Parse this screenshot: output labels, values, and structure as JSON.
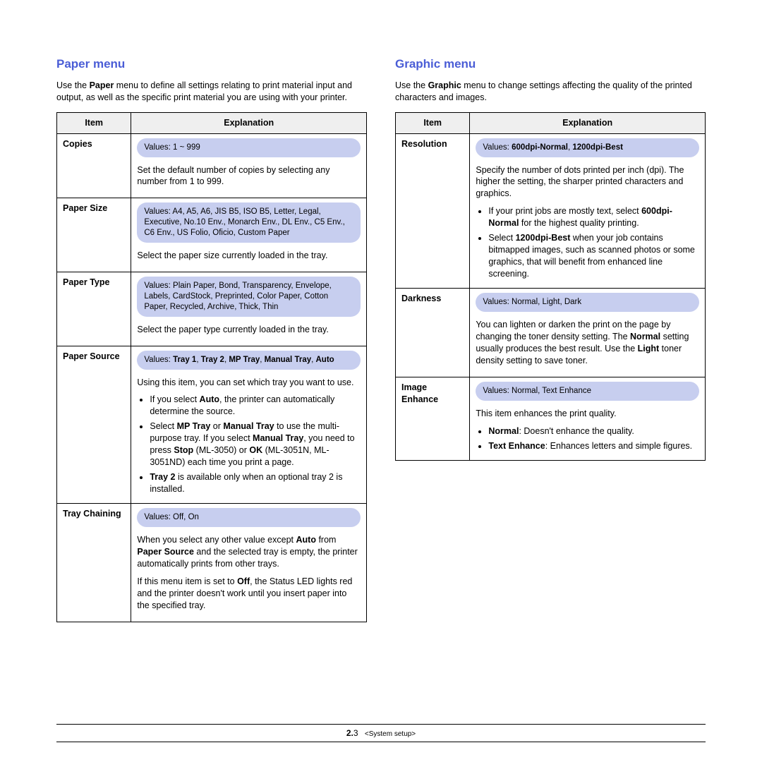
{
  "left": {
    "title": "Paper menu",
    "intro_pre": "Use the ",
    "intro_bold": "Paper",
    "intro_post": " menu to define all settings relating to print material input and output, as well as the specific print material you are using with your printer.",
    "th_item": "Item",
    "th_expl": "Explanation",
    "rows": {
      "copies": {
        "item": "Copies",
        "pill": "Values: 1 ~ 999",
        "desc": "Set the default number of copies by selecting any number from 1 to 999."
      },
      "psize": {
        "item": "Paper Size",
        "pill": "Values: A4, A5, A6, JIS B5, ISO B5, Letter, Legal, Executive, No.10 Env., Monarch Env., DL Env., C5 Env., C6 Env., US Folio, Oficio, Custom Paper",
        "desc": "Select the paper size currently loaded in the tray."
      },
      "ptype": {
        "item": "Paper Type",
        "pill": "Values: Plain Paper, Bond, Transparency, Envelope, Labels, CardStock, Preprinted, Color Paper, Cotton Paper, Recycled, Archive, Thick, Thin",
        "desc": "Select the paper type currently loaded in the tray."
      },
      "psource": {
        "item": "Paper Source",
        "pill_pre": "Values: ",
        "pill_b1": "Tray 1",
        "pill_s1": ", ",
        "pill_b2": "Tray 2",
        "pill_s2": ", ",
        "pill_b3": "MP Tray",
        "pill_s3": ", ",
        "pill_b4": "Manual Tray",
        "pill_s4": ", ",
        "pill_b5": "Auto",
        "desc": "Using this item, you can set which tray you want to use.",
        "bul1_a": "If you select ",
        "bul1_b": "Auto",
        "bul1_c": ", the printer can automatically determine the source.",
        "bul2_a": "Select ",
        "bul2_b": "MP Tray",
        "bul2_c": " or ",
        "bul2_d": "Manual Tray",
        "bul2_e": " to use the multi-purpose tray. If you select ",
        "bul2_f": "Manual Tray",
        "bul2_g": ", you need to press ",
        "bul2_h": "Stop",
        "bul2_i": " (ML-3050) or ",
        "bul2_j": "OK",
        "bul2_k": " (ML-3051N, ML-3051ND) each time you print a page.",
        "bul3_a": "Tray 2",
        "bul3_b": " is available only when an optional tray 2 is installed."
      },
      "tchain": {
        "item": "Tray Chaining",
        "pill": "Values: Off, On",
        "p1_a": "When you select any other value except ",
        "p1_b": "Auto",
        "p1_c": " from ",
        "p1_d": "Paper Source",
        "p1_e": " and the selected tray is empty, the printer automatically prints from other trays.",
        "p2_a": "If this menu item is set to ",
        "p2_b": "Off",
        "p2_c": ", the Status LED lights red and the printer doesn't work until you insert paper into the specified tray."
      }
    }
  },
  "right": {
    "title": "Graphic menu",
    "intro_pre": "Use the ",
    "intro_bold": "Graphic",
    "intro_post": " menu to change settings affecting the quality of the printed characters and images.",
    "th_item": "Item",
    "th_expl": "Explanation",
    "rows": {
      "res": {
        "item": "Resolution",
        "pill_pre": "Values: ",
        "pill_b1": "600dpi-Normal",
        "pill_s1": ", ",
        "pill_b2": "1200dpi-Best",
        "desc": "Specify the number of dots printed per inch (dpi). The higher the setting, the sharper printed characters and graphics.",
        "bul1_a": "If your print jobs are mostly text, select ",
        "bul1_b": "600dpi-Normal",
        "bul1_c": " for the highest quality printing.",
        "bul2_a": "Select ",
        "bul2_b": "1200dpi-Best",
        "bul2_c": " when your job contains bitmapped images, such as scanned photos or some graphics, that will benefit from enhanced line screening."
      },
      "dark": {
        "item": "Darkness",
        "pill": "Values: Normal, Light, Dark",
        "p_a": "You can lighten or darken the print on the page by changing the toner density setting. The ",
        "p_b": "Normal",
        "p_c": " setting usually produces the best result. Use the ",
        "p_d": "Light",
        "p_e": " toner density setting to save toner."
      },
      "imge": {
        "item": "Image Enhance",
        "pill": "Values: Normal, Text Enhance",
        "desc": "This item enhances the print quality.",
        "bul1_a": "Normal",
        "bul1_b": ": Doesn't enhance the quality.",
        "bul2_a": "Text Enhance",
        "bul2_b": ": Enhances letters and simple figures."
      }
    }
  },
  "footer": {
    "page_pre": "2.",
    "page_num": "3",
    "chapter": "<System setup>"
  }
}
